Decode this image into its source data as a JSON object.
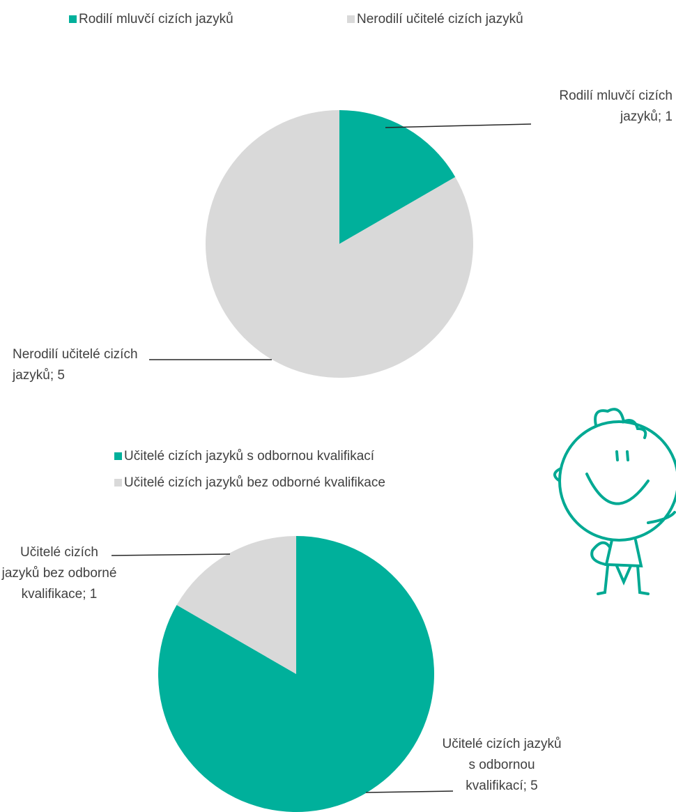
{
  "chart_data": [
    {
      "type": "pie",
      "categories": [
        "Rodilí mluvčí cizích jazyků",
        "Nerodilí učitelé cizích jazyků"
      ],
      "values": [
        1,
        5
      ],
      "value_labels": [
        "Rodilí mluvčí cizích jazyků; 1",
        "Nerodilí učitelé cizích jazyků; 5"
      ],
      "colors": [
        "#00b09b",
        "#d9d9d9"
      ]
    },
    {
      "type": "pie",
      "categories": [
        "Učitelé cizích jazyků s odbornou kvalifikací",
        "Učitelé cizích jazyků bez odborné kvalifikace"
      ],
      "values": [
        5,
        1
      ],
      "value_labels": [
        "Učitelé cizích jazyků s odbornou kvalifikací; 5",
        "Učitelé cizích jazyků bez odborné kvalifikace; 1"
      ],
      "colors": [
        "#00b09b",
        "#d9d9d9"
      ]
    }
  ]
}
